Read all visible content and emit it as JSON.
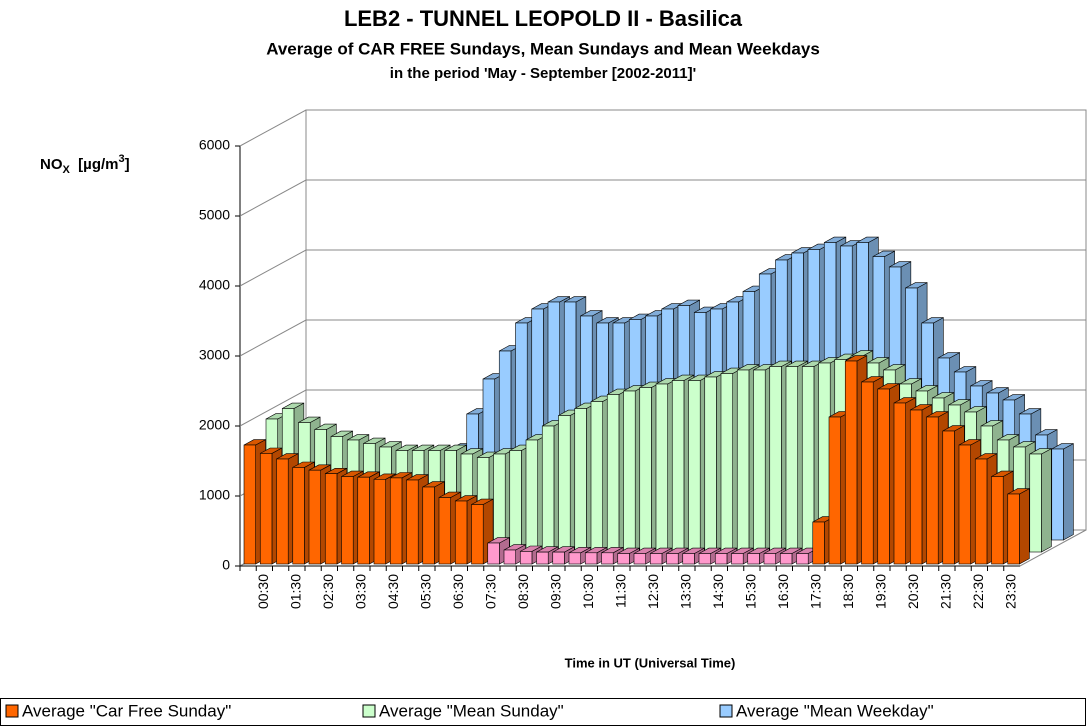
{
  "chart_data": {
    "type": "bar3d",
    "title": "LEB2 - TUNNEL LEOPOLD II - Basilica",
    "subtitle": "Average of CAR FREE Sundays, Mean Sundays and Mean Weekdays",
    "subtitle2": "in the period  'May - September [2002-2011]'",
    "y_label_parts": [
      "NO",
      "X",
      "  [µg/m",
      "3",
      "]"
    ],
    "x_label": "Time in UT (Universal Time)",
    "ylim": [
      0,
      6000
    ],
    "yticks": [
      0,
      1000,
      2000,
      3000,
      4000,
      5000,
      6000
    ],
    "grid": true,
    "categories": [
      null,
      "00:30",
      null,
      "01:30",
      null,
      "02:30",
      null,
      "03:30",
      null,
      "04:30",
      null,
      "05:30",
      null,
      "06:30",
      null,
      "07:30",
      null,
      "08:30",
      null,
      "09:30",
      null,
      "10:30",
      null,
      "11:30",
      null,
      "12:30",
      null,
      "13:30",
      null,
      "14:30",
      null,
      "15:30",
      null,
      "16:30",
      null,
      "17:30",
      null,
      "18:30",
      null,
      "19:30",
      null,
      "20:30",
      null,
      "21:30",
      null,
      "22:30",
      null,
      "23:30"
    ],
    "series": [
      {
        "name": "Average \"Mean Weekday\"",
        "color": "#99ccff",
        "values": [
          1500,
          1400,
          1300,
          1200,
          1150,
          1100,
          1050,
          1000,
          1000,
          1050,
          1300,
          1800,
          2300,
          2700,
          3100,
          3300,
          3400,
          3400,
          3200,
          3100,
          3100,
          3150,
          3200,
          3300,
          3350,
          3250,
          3300,
          3400,
          3550,
          3800,
          4000,
          4100,
          4150,
          4250,
          4200,
          4250,
          4050,
          3900,
          3600,
          3100,
          2600,
          2400,
          2200,
          2100,
          2000,
          1800,
          1500,
          1300
        ]
      },
      {
        "name": "Average \"Mean Sunday\"",
        "color": "#ccffcc",
        "values": [
          1900,
          2050,
          1850,
          1750,
          1650,
          1600,
          1550,
          1500,
          1450,
          1450,
          1450,
          1450,
          1400,
          1350,
          1400,
          1450,
          1600,
          1800,
          1950,
          2050,
          2150,
          2250,
          2300,
          2350,
          2400,
          2450,
          2450,
          2500,
          2550,
          2600,
          2600,
          2650,
          2650,
          2650,
          2700,
          2750,
          2800,
          2700,
          2600,
          2400,
          2300,
          2200,
          2100,
          2000,
          1800,
          1600,
          1500,
          1400
        ]
      },
      {
        "name": "Average \"Car Free Sunday\"",
        "color": "#ff6600",
        "values": [
          1700,
          1580,
          1500,
          1380,
          1340,
          1290,
          1250,
          1240,
          1210,
          1230,
          1200,
          1100,
          950,
          900,
          850,
          300,
          200,
          180,
          170,
          170,
          160,
          160,
          160,
          150,
          150,
          150,
          150,
          150,
          150,
          150,
          150,
          150,
          150,
          150,
          150,
          600,
          2100,
          2900,
          2600,
          2500,
          2300,
          2200,
          2100,
          1900,
          1700,
          1500,
          1250,
          1000
        ],
        "colors": [
          "#ff6600",
          "#ff6600",
          "#ff6600",
          "#ff6600",
          "#ff6600",
          "#ff6600",
          "#ff6600",
          "#ff6600",
          "#ff6600",
          "#ff6600",
          "#ff6600",
          "#ff6600",
          "#ff6600",
          "#ff6600",
          "#ff6600",
          "#ff99cc",
          "#ff99cc",
          "#ff99cc",
          "#ff99cc",
          "#ff99cc",
          "#ff99cc",
          "#ff99cc",
          "#ff99cc",
          "#ff99cc",
          "#ff99cc",
          "#ff99cc",
          "#ff99cc",
          "#ff99cc",
          "#ff99cc",
          "#ff99cc",
          "#ff99cc",
          "#ff99cc",
          "#ff99cc",
          "#ff99cc",
          "#ff99cc",
          "#ff6600",
          "#ff6600",
          "#ff6600",
          "#ff6600",
          "#ff6600",
          "#ff6600",
          "#ff6600",
          "#ff6600",
          "#ff6600",
          "#ff6600",
          "#ff6600",
          "#ff6600",
          "#ff6600"
        ]
      }
    ],
    "legend_order": [
      2,
      1,
      0
    ]
  }
}
